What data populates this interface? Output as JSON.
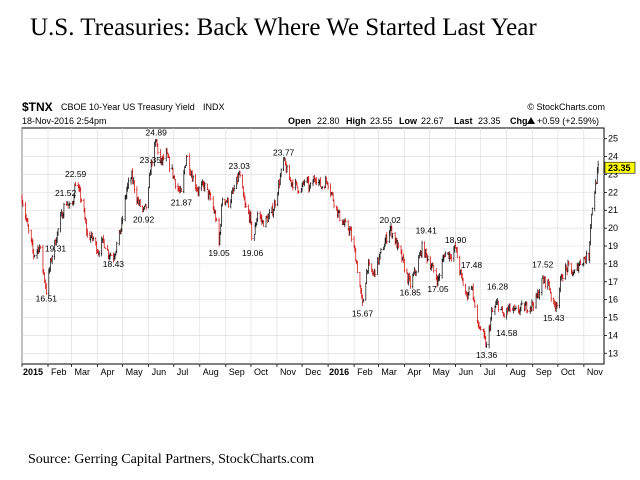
{
  "title": "U.S. Treasuries: Back Where We Started Last Year",
  "source": "Source: Gerring Capital Partners, StockCharts.com",
  "header": {
    "ticker": "$TNX",
    "description": "CBOE 10-Year US Treasury Yield",
    "exchange": "INDX",
    "watermark": "© StockCharts.com",
    "date": "18-Nov-2016 2:54pm",
    "open_label": "Open",
    "open": "22.80",
    "high_label": "High",
    "high": "23.55",
    "low_label": "Low",
    "low": "22.67",
    "last_label": "Last",
    "last": "23.35",
    "chg_label": "Chg",
    "chg": "+0.59 (+2.59%)",
    "chg_icon": "triangle-up-icon"
  },
  "chart_data": {
    "type": "line",
    "style": "ohlc-bars",
    "colors": {
      "up": "#000000",
      "down": "#cc0000",
      "last_box": "#ffff00"
    },
    "ylim": [
      12.4,
      25.6
    ],
    "yticks": [
      13,
      14,
      15,
      16,
      17,
      18,
      19,
      20,
      21,
      22,
      23,
      24,
      25
    ],
    "y_axis_side": "right",
    "grid": true,
    "last_value": "23.35",
    "xlim": [
      "2015-01-01",
      "2016-11-25"
    ],
    "xticks": [
      {
        "label": "2015",
        "date": "2015-01-01",
        "year": true
      },
      {
        "label": "Feb",
        "date": "2015-02-01"
      },
      {
        "label": "Mar",
        "date": "2015-03-01"
      },
      {
        "label": "Apr",
        "date": "2015-04-01"
      },
      {
        "label": "May",
        "date": "2015-05-01"
      },
      {
        "label": "Jun",
        "date": "2015-06-01"
      },
      {
        "label": "Jul",
        "date": "2015-07-01"
      },
      {
        "label": "Aug",
        "date": "2015-08-01"
      },
      {
        "label": "Sep",
        "date": "2015-09-01"
      },
      {
        "label": "Oct",
        "date": "2015-10-01"
      },
      {
        "label": "Nov",
        "date": "2015-11-01"
      },
      {
        "label": "Dec",
        "date": "2015-12-01"
      },
      {
        "label": "2016",
        "date": "2016-01-01",
        "year": true
      },
      {
        "label": "Feb",
        "date": "2016-02-01"
      },
      {
        "label": "Mar",
        "date": "2016-03-01"
      },
      {
        "label": "Apr",
        "date": "2016-04-01"
      },
      {
        "label": "May",
        "date": "2016-05-01"
      },
      {
        "label": "Jun",
        "date": "2016-06-01"
      },
      {
        "label": "Jul",
        "date": "2016-07-01"
      },
      {
        "label": "Aug",
        "date": "2016-08-01"
      },
      {
        "label": "Sep",
        "date": "2016-09-01"
      },
      {
        "label": "Oct",
        "date": "2016-10-01"
      },
      {
        "label": "Nov",
        "date": "2016-11-01"
      }
    ],
    "points": [
      [
        "2015-01-01",
        21.7
      ],
      [
        "2015-01-08",
        20.0
      ],
      [
        "2015-01-15",
        18.5
      ],
      [
        "2015-01-22",
        19.0
      ],
      [
        "2015-01-30",
        16.51
      ],
      [
        "2015-02-05",
        18.3
      ],
      [
        "2015-02-10",
        19.31
      ],
      [
        "2015-02-16",
        20.5
      ],
      [
        "2015-02-22",
        21.52
      ],
      [
        "2015-03-01",
        21.0
      ],
      [
        "2015-03-06",
        22.59
      ],
      [
        "2015-03-13",
        21.6
      ],
      [
        "2015-03-20",
        19.6
      ],
      [
        "2015-03-27",
        19.4
      ],
      [
        "2015-04-02",
        18.7
      ],
      [
        "2015-04-08",
        19.3
      ],
      [
        "2015-04-14",
        18.6
      ],
      [
        "2015-04-20",
        18.43
      ],
      [
        "2015-04-25",
        19.2
      ],
      [
        "2015-04-30",
        20.2
      ],
      [
        "2015-05-06",
        22.2
      ],
      [
        "2015-05-12",
        22.9
      ],
      [
        "2015-05-19",
        21.5
      ],
      [
        "2015-05-26",
        20.92
      ],
      [
        "2015-05-31",
        21.4
      ],
      [
        "2015-06-03",
        23.35
      ],
      [
        "2015-06-10",
        24.89
      ],
      [
        "2015-06-15",
        23.6
      ],
      [
        "2015-06-22",
        24.1
      ],
      [
        "2015-06-28",
        23.3
      ],
      [
        "2015-07-05",
        22.3
      ],
      [
        "2015-07-10",
        21.87
      ],
      [
        "2015-07-16",
        24.1
      ],
      [
        "2015-07-23",
        22.9
      ],
      [
        "2015-07-30",
        22.1
      ],
      [
        "2015-08-06",
        22.4
      ],
      [
        "2015-08-14",
        21.6
      ],
      [
        "2015-08-20",
        20.6
      ],
      [
        "2015-08-24",
        19.05
      ],
      [
        "2015-08-28",
        21.7
      ],
      [
        "2015-09-05",
        21.4
      ],
      [
        "2015-09-12",
        22.3
      ],
      [
        "2015-09-17",
        23.03
      ],
      [
        "2015-09-24",
        21.2
      ],
      [
        "2015-09-30",
        20.6
      ],
      [
        "2015-10-03",
        19.06
      ],
      [
        "2015-10-09",
        20.9
      ],
      [
        "2015-10-15",
        20.3
      ],
      [
        "2015-10-22",
        20.6
      ],
      [
        "2015-10-28",
        21.1
      ],
      [
        "2015-11-03",
        22.4
      ],
      [
        "2015-11-09",
        23.77
      ],
      [
        "2015-11-16",
        22.7
      ],
      [
        "2015-11-23",
        22.4
      ],
      [
        "2015-11-30",
        22.1
      ],
      [
        "2015-12-05",
        22.8
      ],
      [
        "2015-12-10",
        22.2
      ],
      [
        "2015-12-17",
        22.9
      ],
      [
        "2015-12-24",
        22.3
      ],
      [
        "2015-12-31",
        22.7
      ],
      [
        "2016-01-06",
        21.8
      ],
      [
        "2016-01-13",
        20.8
      ],
      [
        "2016-01-20",
        20.2
      ],
      [
        "2016-01-27",
        19.9
      ],
      [
        "2016-02-03",
        18.4
      ],
      [
        "2016-02-11",
        15.67
      ],
      [
        "2016-02-17",
        17.9
      ],
      [
        "2016-02-24",
        17.4
      ],
      [
        "2016-03-01",
        18.2
      ],
      [
        "2016-03-08",
        19.1
      ],
      [
        "2016-03-15",
        20.02
      ],
      [
        "2016-03-22",
        19.2
      ],
      [
        "2016-03-29",
        18.3
      ],
      [
        "2016-04-05",
        17.2
      ],
      [
        "2016-04-08",
        16.85
      ],
      [
        "2016-04-15",
        17.7
      ],
      [
        "2016-04-22",
        18.9
      ],
      [
        "2016-04-29",
        18.3
      ],
      [
        "2016-05-06",
        17.6
      ],
      [
        "2016-05-11",
        17.05
      ],
      [
        "2016-05-19",
        18.6
      ],
      [
        "2016-05-26",
        18.5
      ],
      [
        "2016-06-01",
        18.9
      ],
      [
        "2016-06-07",
        17.4
      ],
      [
        "2016-06-14",
        16.2
      ],
      [
        "2016-06-20",
        16.9
      ],
      [
        "2016-06-27",
        14.6
      ],
      [
        "2016-07-02",
        14.3
      ],
      [
        "2016-07-08",
        13.36
      ],
      [
        "2016-07-14",
        15.2
      ],
      [
        "2016-07-21",
        15.8
      ],
      [
        "2016-07-28",
        15.1
      ],
      [
        "2016-08-04",
        15.5
      ],
      [
        "2016-08-11",
        15.3
      ],
      [
        "2016-08-18",
        15.5
      ],
      [
        "2016-08-24",
        15.6
      ],
      [
        "2016-08-31",
        15.7
      ],
      [
        "2016-09-06",
        16.1
      ],
      [
        "2016-09-13",
        17.1
      ],
      [
        "2016-09-20",
        16.9
      ],
      [
        "2016-09-26",
        15.6
      ],
      [
        "2016-09-30",
        15.9
      ],
      [
        "2016-10-06",
        17.4
      ],
      [
        "2016-10-13",
        17.8
      ],
      [
        "2016-10-20",
        17.4
      ],
      [
        "2016-10-26",
        18.0
      ],
      [
        "2016-11-01",
        18.3
      ],
      [
        "2016-11-07",
        18.4
      ],
      [
        "2016-11-09",
        20.3
      ],
      [
        "2016-11-11",
        21.2
      ],
      [
        "2016-11-15",
        22.4
      ],
      [
        "2016-11-18",
        23.35
      ]
    ],
    "annotations": [
      {
        "label": "16.51",
        "date": "2015-01-30",
        "value": 16.51,
        "pos": "below"
      },
      {
        "label": "19.31",
        "date": "2015-02-10",
        "value": 19.31,
        "pos": "below"
      },
      {
        "label": "21.52",
        "date": "2015-02-22",
        "value": 21.52,
        "pos": "above"
      },
      {
        "label": "22.59",
        "date": "2015-03-06",
        "value": 22.59,
        "pos": "above"
      },
      {
        "label": "18.43",
        "date": "2015-04-20",
        "value": 18.43,
        "pos": "below"
      },
      {
        "label": "20.92",
        "date": "2015-05-26",
        "value": 20.92,
        "pos": "below"
      },
      {
        "label": "23.35",
        "date": "2015-06-03",
        "value": 23.35,
        "pos": "above"
      },
      {
        "label": "24.89",
        "date": "2015-06-10",
        "value": 24.89,
        "pos": "above"
      },
      {
        "label": "21.87",
        "date": "2015-07-10",
        "value": 21.87,
        "pos": "below"
      },
      {
        "label": "19.05",
        "date": "2015-08-24",
        "value": 19.05,
        "pos": "below"
      },
      {
        "label": "23.03",
        "date": "2015-09-17",
        "value": 23.03,
        "pos": "above"
      },
      {
        "label": "19.06",
        "date": "2015-10-03",
        "value": 19.06,
        "pos": "below"
      },
      {
        "label": "23.77",
        "date": "2015-11-09",
        "value": 23.77,
        "pos": "above"
      },
      {
        "label": "15.67",
        "date": "2016-02-11",
        "value": 15.67,
        "pos": "below"
      },
      {
        "label": "20.02",
        "date": "2016-03-15",
        "value": 20.02,
        "pos": "above"
      },
      {
        "label": "16.85",
        "date": "2016-04-08",
        "value": 16.85,
        "pos": "below"
      },
      {
        "label": "19.41",
        "date": "2016-04-27",
        "value": 19.41,
        "pos": "above"
      },
      {
        "label": "17.05",
        "date": "2016-05-11",
        "value": 17.05,
        "pos": "below"
      },
      {
        "label": "18.90",
        "date": "2016-06-01",
        "value": 18.9,
        "pos": "above"
      },
      {
        "label": "17.48",
        "date": "2016-06-20",
        "value": 17.48,
        "pos": "above"
      },
      {
        "label": "13.36",
        "date": "2016-07-08",
        "value": 13.36,
        "pos": "below"
      },
      {
        "label": "16.28",
        "date": "2016-07-21",
        "value": 16.28,
        "pos": "above"
      },
      {
        "label": "14.58",
        "date": "2016-08-01",
        "value": 14.58,
        "pos": "below"
      },
      {
        "label": "17.52",
        "date": "2016-09-13",
        "value": 17.52,
        "pos": "above"
      },
      {
        "label": "15.43",
        "date": "2016-09-26",
        "value": 15.43,
        "pos": "below"
      }
    ]
  }
}
